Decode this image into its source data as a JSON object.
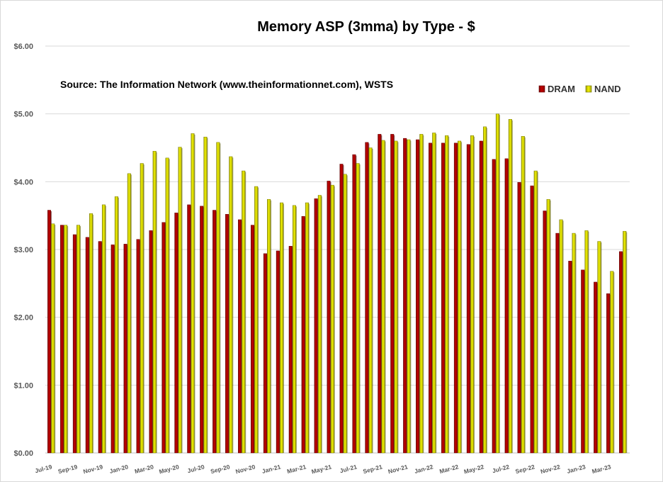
{
  "chart_data": {
    "type": "bar",
    "title": "Memory ASP (3mma) by Type - $",
    "annotation": "Source: The Information Network (www.theinformationnet.com), WSTS",
    "xlabel": "",
    "ylabel": "",
    "ylim": [
      0,
      6
    ],
    "y_ticks": [
      "$0.00",
      "$1.00",
      "$2.00",
      "$3.00",
      "$4.00",
      "$5.00",
      "$6.00"
    ],
    "y_tick_values": [
      0,
      1,
      2,
      3,
      4,
      5,
      6
    ],
    "grid": true,
    "legend_position": "top-right",
    "categories": [
      "Jul-19",
      "Aug-19",
      "Sep-19",
      "Oct-19",
      "Nov-19",
      "Dec-19",
      "Jan-20",
      "Feb-20",
      "Mar-20",
      "Apr-20",
      "May-20",
      "Jun-20",
      "Jul-20",
      "Aug-20",
      "Sep-20",
      "Oct-20",
      "Nov-20",
      "Dec-20",
      "Jan-21",
      "Feb-21",
      "Mar-21",
      "Apr-21",
      "May-21",
      "Jun-21",
      "Jul-21",
      "Aug-21",
      "Sep-21",
      "Oct-21",
      "Nov-21",
      "Dec-21",
      "Jan-22",
      "Feb-22",
      "Mar-22",
      "Apr-22",
      "May-22",
      "Jun-22",
      "Jul-22",
      "Aug-22",
      "Sep-22",
      "Oct-22",
      "Nov-22",
      "Dec-22",
      "Jan-23",
      "Feb-23",
      "Mar-23",
      "Apr-23"
    ],
    "x_tick_labels": [
      "Jul-19",
      "",
      "Sep-19",
      "",
      "Nov-19",
      "",
      "Jan-20",
      "",
      "Mar-20",
      "",
      "May-20",
      "",
      "Jul-20",
      "",
      "Sep-20",
      "",
      "Nov-20",
      "",
      "Jan-21",
      "",
      "Mar-21",
      "",
      "May-21",
      "",
      "Jul-21",
      "",
      "Sep-21",
      "",
      "Nov-21",
      "",
      "Jan-22",
      "",
      "Mar-22",
      "",
      "May-22",
      "",
      "Jul-22",
      "",
      "Sep-22",
      "",
      "Nov-22",
      "",
      "Jan-23",
      "",
      "Mar-23",
      ""
    ],
    "series": [
      {
        "name": "DRAM",
        "color": "#b30000",
        "values": [
          3.58,
          3.36,
          3.22,
          3.18,
          3.12,
          3.07,
          3.08,
          3.15,
          3.28,
          3.4,
          3.54,
          3.66,
          3.64,
          3.58,
          3.52,
          3.44,
          3.36,
          2.94,
          2.98,
          3.05,
          3.49,
          3.75,
          4.01,
          4.26,
          4.4,
          4.58,
          4.7,
          4.7,
          4.64,
          4.62,
          4.57,
          4.57,
          4.57,
          4.55,
          4.6,
          4.33,
          4.34,
          3.99,
          3.94,
          3.57,
          3.24,
          2.83,
          2.7,
          2.52,
          2.35,
          2.97
        ]
      },
      {
        "name": "NAND",
        "color": "#d4d400",
        "values": [
          3.38,
          3.36,
          3.36,
          3.53,
          3.66,
          3.78,
          4.12,
          4.27,
          4.45,
          4.35,
          4.51,
          4.71,
          4.66,
          4.58,
          4.37,
          4.16,
          3.93,
          3.74,
          3.69,
          3.65,
          3.69,
          3.8,
          3.95,
          4.11,
          4.27,
          4.5,
          4.61,
          4.6,
          4.62,
          4.7,
          4.72,
          4.68,
          4.6,
          4.68,
          4.81,
          5.0,
          4.92,
          4.67,
          4.16,
          3.74,
          3.44,
          3.24,
          3.28,
          3.12,
          2.68,
          3.27
        ]
      }
    ]
  }
}
